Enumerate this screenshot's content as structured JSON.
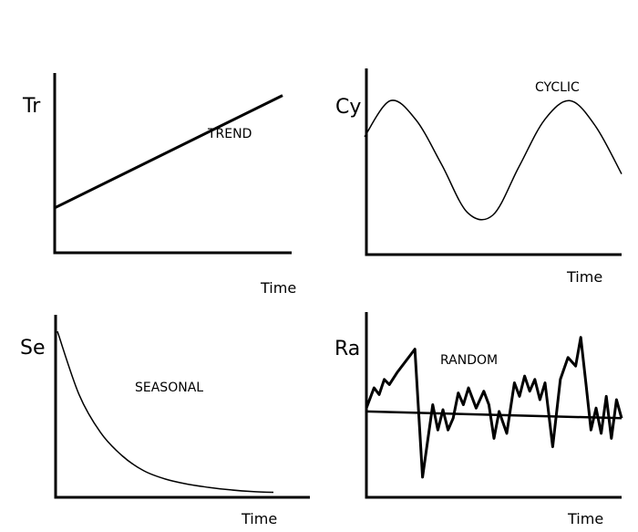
{
  "chart_data": [
    {
      "type": "line",
      "ylabel": "Tr",
      "title": "TREND",
      "xlabel": "Time",
      "series": [
        {
          "x": [
            0,
            10
          ],
          "values": [
            2,
            7
          ]
        }
      ],
      "xlim": [
        0,
        10
      ],
      "ylim": [
        0,
        8
      ],
      "grid": false
    },
    {
      "type": "line",
      "ylabel": "Cy",
      "title": "CYCLIC",
      "xlabel": "Time",
      "series": [
        {
          "x": [
            0,
            1,
            2,
            3,
            4,
            5,
            6,
            7,
            8,
            9,
            10
          ],
          "values": [
            0.4,
            0.98,
            0.67,
            -0.05,
            -0.82,
            -0.86,
            -0.09,
            0.67,
            0.98,
            0.56,
            -0.2
          ]
        }
      ],
      "xlim": [
        0,
        10
      ],
      "ylim": [
        -1.5,
        1.5
      ],
      "grid": false
    },
    {
      "type": "line",
      "ylabel": "Se",
      "title": "SEASONAL",
      "xlabel": "Time",
      "series": [
        {
          "x": [
            0,
            1,
            2,
            3,
            4,
            5,
            6,
            7,
            8,
            9,
            10
          ],
          "values": [
            10,
            6.2,
            3.9,
            2.5,
            1.6,
            1.1,
            0.8,
            0.6,
            0.45,
            0.35,
            0.3
          ]
        }
      ],
      "xlim": [
        0,
        10
      ],
      "ylim": [
        0,
        11
      ],
      "grid": false
    },
    {
      "type": "line",
      "ylabel": "Ra",
      "title": "RANDOM",
      "xlabel": "Time",
      "series": [
        {
          "x": [
            0,
            0.3,
            0.5,
            0.7,
            0.9,
            1.2,
            1.9,
            2.2,
            2.6,
            2.8,
            3.0,
            3.2,
            3.4,
            3.6,
            3.8,
            4.0,
            4.3,
            4.6,
            4.8,
            5.0,
            5.2,
            5.5,
            5.8,
            6.0,
            6.2,
            6.4,
            6.6,
            6.8,
            7.0,
            7.3,
            7.6,
            7.9,
            8.2,
            8.4,
            8.6,
            8.8,
            9.0,
            9.2,
            9.4,
            9.6,
            9.8,
            10
          ],
          "values": [
            0.3,
            1.5,
            1.1,
            2.0,
            1.7,
            2.4,
            3.8,
            -3.8,
            0.5,
            -1.0,
            0.2,
            -1.0,
            -0.3,
            1.2,
            0.5,
            1.5,
            0.3,
            1.3,
            0.5,
            -1.5,
            0.1,
            -1.2,
            1.8,
            1.0,
            2.2,
            1.3,
            2.0,
            0.8,
            1.8,
            -2.0,
            2.0,
            3.3,
            2.8,
            4.5,
            1.8,
            -1.0,
            0.3,
            -1.2,
            1.0,
            -1.5,
            0.8,
            -0.3
          ]
        },
        {
          "x": [
            0,
            10
          ],
          "values": [
            0.1,
            -0.3
          ]
        }
      ],
      "xlim": [
        0,
        10
      ],
      "ylim": [
        -5,
        6
      ],
      "grid": false
    }
  ]
}
